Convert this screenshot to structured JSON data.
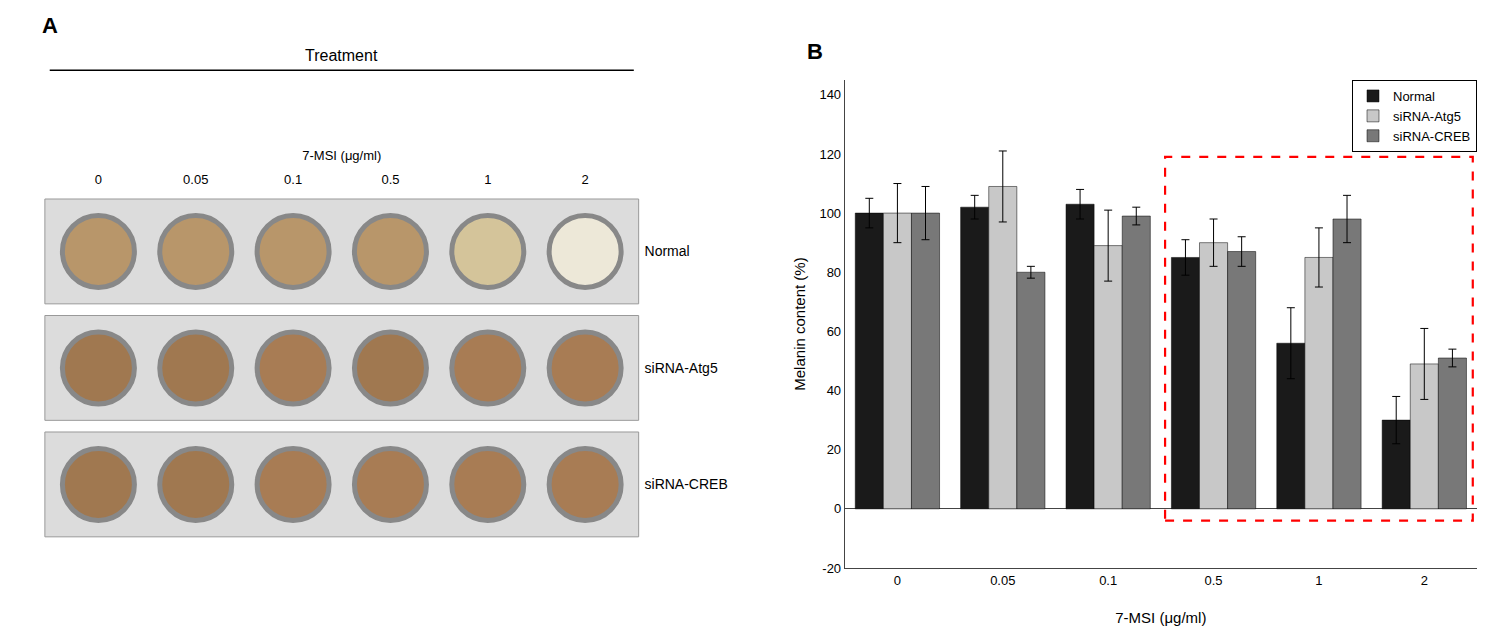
{
  "chart_data": [
    {
      "type": "plate",
      "title": "A",
      "subtitle": "Treatment",
      "xlabel": "7-MSI (μg/ml)",
      "categories": [
        "0",
        "0.05",
        "0.1",
        "0.5",
        "1",
        "2"
      ],
      "series": [
        {
          "name": "Normal",
          "colors": [
            "#b8966a",
            "#b8966a",
            "#b8966a",
            "#b8966a",
            "#d4c49a",
            "#ede8d8"
          ]
        },
        {
          "name": "siRNA-Atg5",
          "colors": [
            "#a07850",
            "#a07850",
            "#a87c54",
            "#a07850",
            "#a87c54",
            "#a87c54"
          ]
        },
        {
          "name": "siRNA-CREB",
          "colors": [
            "#a07850",
            "#a07850",
            "#a87c54",
            "#a87c54",
            "#a87c54",
            "#a87c54"
          ]
        }
      ]
    },
    {
      "type": "bar",
      "title": "B",
      "xlabel": "7-MSI (μg/ml)",
      "ylabel": "Melanin content (%)",
      "categories": [
        "0",
        "0.05",
        "0.1",
        "0.5",
        "1",
        "2"
      ],
      "series": [
        {
          "name": "Normal",
          "color": "#1a1a1a",
          "values": [
            100,
            102,
            103,
            85,
            56,
            30
          ],
          "errors": [
            5,
            4,
            5,
            6,
            12,
            8
          ]
        },
        {
          "name": "siRNA-Atg5",
          "color": "#c8c8c8",
          "values": [
            100,
            109,
            89,
            90,
            85,
            49
          ],
          "errors": [
            10,
            12,
            12,
            8,
            10,
            12
          ]
        },
        {
          "name": "siRNA-CREB",
          "color": "#787878",
          "values": [
            100,
            80,
            99,
            87,
            98,
            51
          ],
          "errors": [
            9,
            2,
            3,
            5,
            8,
            3
          ]
        }
      ],
      "ylim": [
        -20,
        145
      ],
      "yticks": [
        -20,
        0,
        20,
        40,
        60,
        80,
        100,
        120,
        140
      ],
      "grid": false,
      "legend": "upper right",
      "annotations": [
        {
          "type": "box",
          "x": [
            "0.5",
            "2"
          ],
          "y": [
            -4,
            119
          ],
          "color": "red",
          "line_style": "dashed"
        }
      ]
    }
  ]
}
